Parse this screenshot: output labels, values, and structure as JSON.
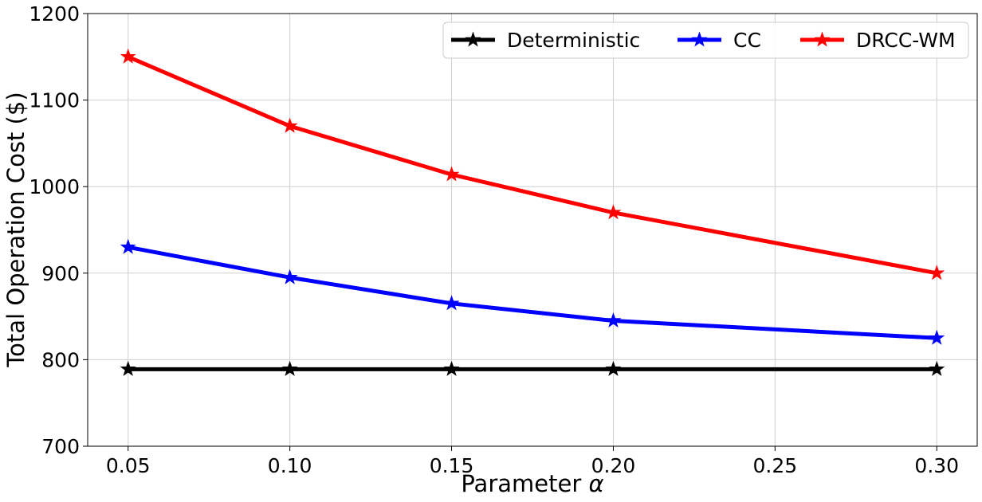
{
  "chart_data": {
    "type": "line",
    "title": "",
    "xlabel_prefix": "Parameter ",
    "xlabel_symbol": "α",
    "ylabel": "Total Operation Cost ($)",
    "x": [
      0.05,
      0.1,
      0.15,
      0.2,
      0.3
    ],
    "xlim": [
      0.0375,
      0.3125
    ],
    "ylim": [
      700,
      1200
    ],
    "xticks": [
      0.05,
      0.1,
      0.15,
      0.2,
      0.25,
      0.3
    ],
    "xtick_labels": [
      "0.05",
      "0.10",
      "0.15",
      "0.20",
      "0.25",
      "0.30"
    ],
    "yticks": [
      700,
      800,
      900,
      1000,
      1100,
      1200
    ],
    "ytick_labels": [
      "700",
      "800",
      "900",
      "1000",
      "1100",
      "1200"
    ],
    "grid": true,
    "legend_position": "top-right",
    "marker": "star",
    "series": [
      {
        "name": "Deterministic",
        "color": "#000000",
        "values": [
          789,
          789,
          789,
          789,
          789
        ]
      },
      {
        "name": "CC",
        "color": "#0000ff",
        "values": [
          930,
          895,
          865,
          845,
          825
        ]
      },
      {
        "name": "DRCC-WM",
        "color": "#ff0000",
        "values": [
          1150,
          1070,
          1014,
          970,
          900
        ]
      }
    ]
  }
}
